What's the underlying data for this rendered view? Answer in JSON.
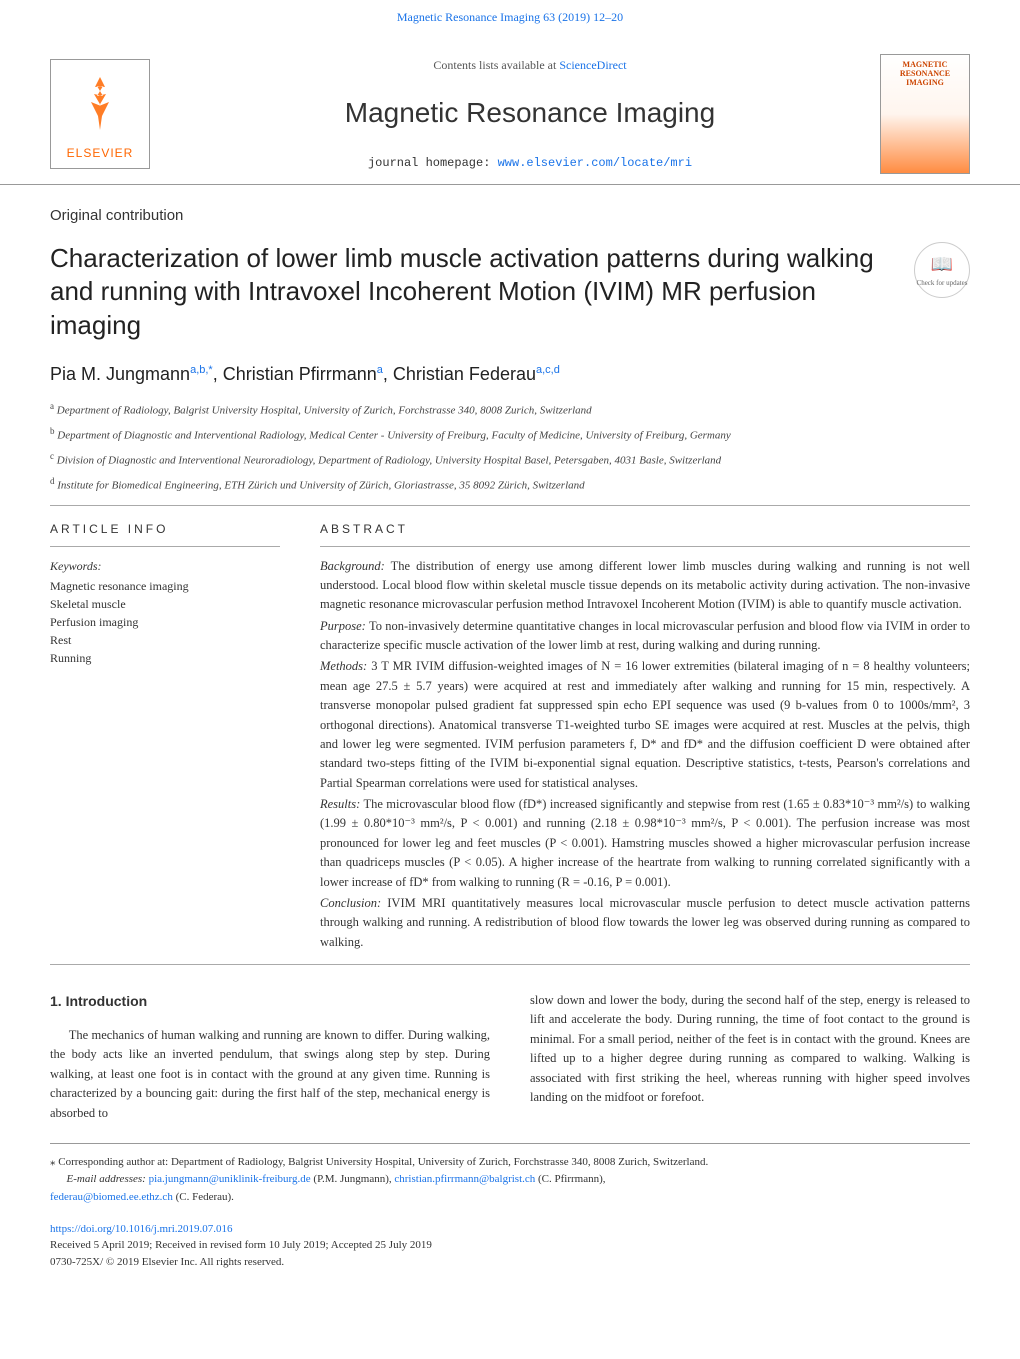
{
  "journal": {
    "citation_header": "Magnetic Resonance Imaging 63 (2019) 12–20",
    "contents_prefix": "Contents lists available at ",
    "contents_link_text": "ScienceDirect",
    "name": "Magnetic Resonance Imaging",
    "homepage_prefix": "journal homepage: ",
    "homepage_link": "www.elsevier.com/locate/mri",
    "publisher_logo_text": "ELSEVIER",
    "cover_thumb_text": "MAGNETIC RESONANCE IMAGING"
  },
  "article": {
    "type": "Original contribution",
    "title": "Characterization of lower limb muscle activation patterns during walking and running with Intravoxel Incoherent Motion (IVIM) MR perfusion imaging",
    "updates_badge": "Check for updates",
    "authors_html": "Pia M. Jungmann<sup>a,b,*</sup>, Christian Pfirrmann<sup>a</sup>, Christian Federau<sup>a,c,d</sup>",
    "affiliations": [
      "a Department of Radiology, Balgrist University Hospital, University of Zurich, Forchstrasse 340, 8008 Zurich, Switzerland",
      "b Department of Diagnostic and Interventional Radiology, Medical Center - University of Freiburg, Faculty of Medicine, University of Freiburg, Germany",
      "c Division of Diagnostic and Interventional Neuroradiology, Department of Radiology, University Hospital Basel, Petersgaben, 4031 Basle, Switzerland",
      "d Institute for Biomedical Engineering, ETH Zürich und University of Zürich, Gloriastrasse, 35 8092 Zürich, Switzerland"
    ]
  },
  "article_info": {
    "heading": "ARTICLE INFO",
    "keywords_label": "Keywords:",
    "keywords": [
      "Magnetic resonance imaging",
      "Skeletal muscle",
      "Perfusion imaging",
      "Rest",
      "Running"
    ]
  },
  "abstract": {
    "heading": "ABSTRACT",
    "background_label": "Background:",
    "background": " The distribution of energy use among different lower limb muscles during walking and running is not well understood. Local blood flow within skeletal muscle tissue depends on its metabolic activity during activation. The non-invasive magnetic resonance microvascular perfusion method Intravoxel Incoherent Motion (IVIM) is able to quantify muscle activation.",
    "purpose_label": "Purpose:",
    "purpose": " To non-invasively determine quantitative changes in local microvascular perfusion and blood flow via IVIM in order to characterize specific muscle activation of the lower limb at rest, during walking and during running.",
    "methods_label": "Methods:",
    "methods": " 3 T MR IVIM diffusion-weighted images of N = 16 lower extremities (bilateral imaging of n = 8 healthy volunteers; mean age 27.5 ± 5.7 years) were acquired at rest and immediately after walking and running for 15 min, respectively. A transverse monopolar pulsed gradient fat suppressed spin echo EPI sequence was used (9 b-values from 0 to 1000s/mm², 3 orthogonal directions). Anatomical transverse T1-weighted turbo SE images were acquired at rest. Muscles at the pelvis, thigh and lower leg were segmented. IVIM perfusion parameters f, D* and fD* and the diffusion coefficient D were obtained after standard two-steps fitting of the IVIM bi-exponential signal equation. Descriptive statistics, t-tests, Pearson's correlations and Partial Spearman correlations were used for statistical analyses.",
    "results_label": "Results:",
    "results": " The microvascular blood flow (fD*) increased significantly and stepwise from rest (1.65 ± 0.83*10⁻³ mm²/s) to walking (1.99 ± 0.80*10⁻³ mm²/s, P < 0.001) and running (2.18 ± 0.98*10⁻³ mm²/s, P < 0.001). The perfusion increase was most pronounced for lower leg and feet muscles (P < 0.001). Hamstring muscles showed a higher microvascular perfusion increase than quadriceps muscles (P < 0.05). A higher increase of the heartrate from walking to running correlated significantly with a lower increase of fD* from walking to running (R = -0.16, P = 0.001).",
    "conclusion_label": "Conclusion:",
    "conclusion": " IVIM MRI quantitatively measures local microvascular muscle perfusion to detect muscle activation patterns through walking and running. A redistribution of blood flow towards the lower leg was observed during running as compared to walking."
  },
  "intro": {
    "heading": "1. Introduction",
    "col1": "The mechanics of human walking and running are known to differ. During walking, the body acts like an inverted pendulum, that swings along step by step. During walking, at least one foot is in contact with the ground at any given time. Running is characterized by a bouncing gait: during the first half of the step, mechanical energy is absorbed to",
    "col2": "slow down and lower the body, during the second half of the step, energy is released to lift and accelerate the body. During running, the time of foot contact to the ground is minimal. For a small period, neither of the feet is in contact with the ground. Knees are lifted up to a higher degree during running as compared to walking. Walking is associated with first striking the heel, whereas running with higher speed involves landing on the midfoot or forefoot."
  },
  "footnotes": {
    "corresponding": "⁎ Corresponding author at: Department of Radiology, Balgrist University Hospital, University of Zurich, Forchstrasse 340, 8008 Zurich, Switzerland.",
    "email_label": "E-mail addresses: ",
    "email1": "pia.jungmann@uniklinik-freiburg.de",
    "email1_name": " (P.M. Jungmann), ",
    "email2": "christian.pfirrmann@balgrist.ch",
    "email2_name": " (C. Pfirrmann),",
    "email3": "federau@biomed.ee.ethz.ch",
    "email3_name": " (C. Federau)."
  },
  "doi": {
    "link": "https://doi.org/10.1016/j.mri.2019.07.016",
    "received": "Received 5 April 2019; Received in revised form 10 July 2019; Accepted 25 July 2019",
    "issn_copyright": "0730-725X/ © 2019 Elsevier Inc. All rights reserved."
  },
  "colors": {
    "link": "#1a73e8",
    "elsevier_orange": "#ff6600",
    "text": "#333333",
    "border": "#999999"
  }
}
